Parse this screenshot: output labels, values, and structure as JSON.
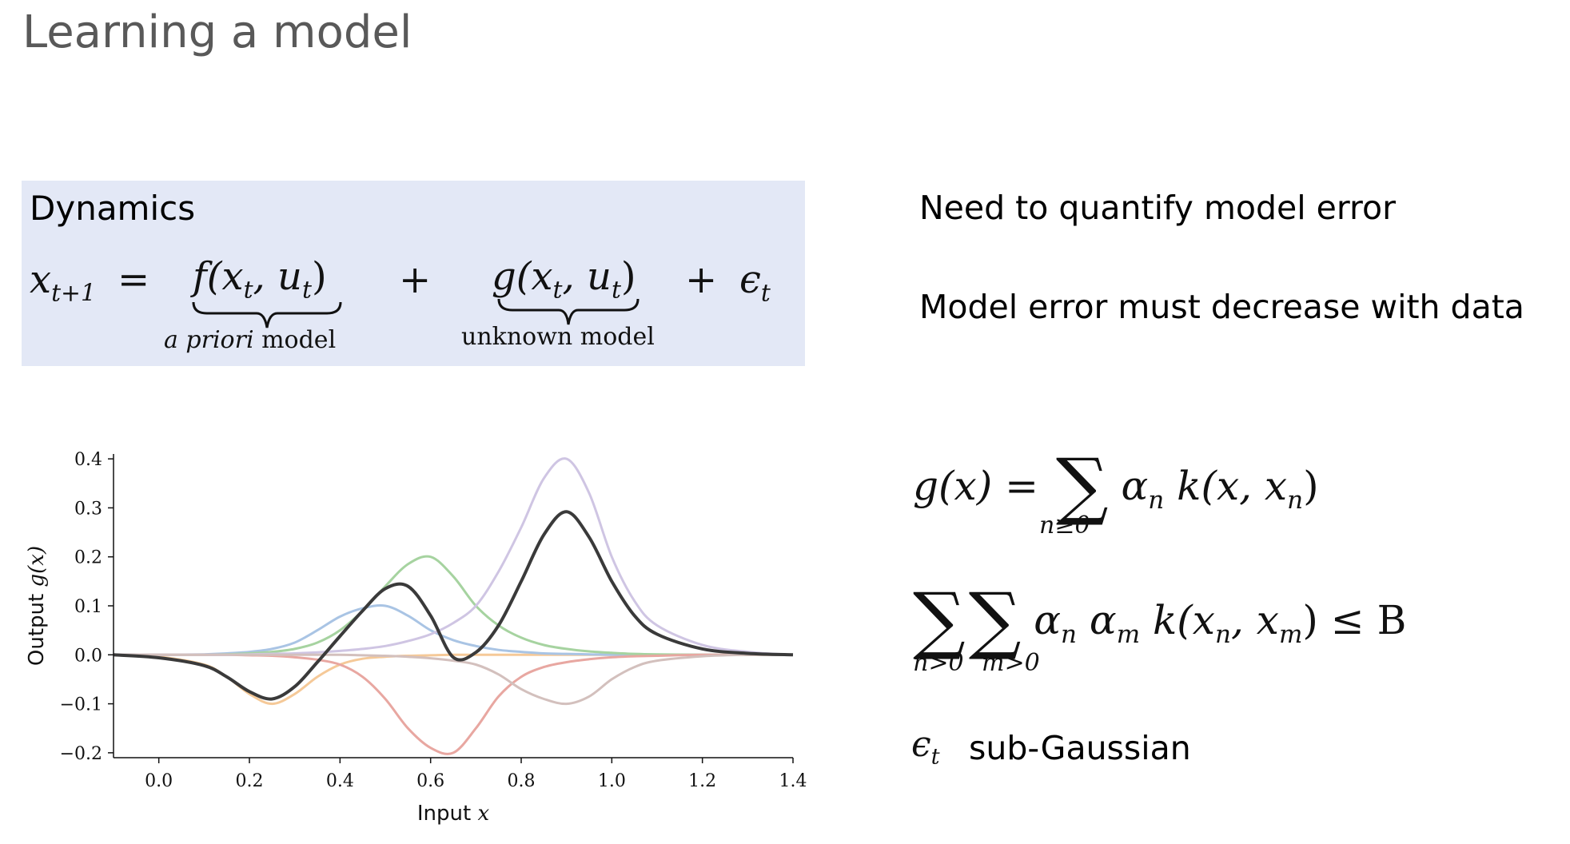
{
  "slide": {
    "title": "Learning a model"
  },
  "dynamics": {
    "heading": "Dynamics",
    "lhs": "x",
    "lhs_sub": "t+1",
    "eq": "=",
    "f_term": "f(x",
    "f_sub1": "t",
    "f_mid": ", u",
    "f_sub2": "t",
    "f_end": ")",
    "plus1": "+",
    "g_term": "g(x",
    "g_sub1": "t",
    "g_mid": ", u",
    "g_sub2": "t",
    "g_end": ")",
    "plus2": "+",
    "eps": "ϵ",
    "eps_sub": "t",
    "f_label_italic": "a priori",
    "f_label_rest": " model",
    "g_label": "unknown model"
  },
  "bullets": {
    "line1": "Need to quantify model error",
    "line2": "Model error must decrease with data",
    "eps_symbol": "ϵ",
    "eps_sub": "t",
    "line3": "sub-Gaussian"
  },
  "formulas": {
    "kernel_lhs": "g(x) =",
    "sum_symbol": "∑",
    "kernel_rhs": "α",
    "kernel_rhs_sub": "n",
    "kernel_k": " k(x, x",
    "kernel_k_sub": "n",
    "kernel_close": ")",
    "kernel_under": "n≥0",
    "norm_terms": "α",
    "norm_sub1": "n",
    "norm_alpha2": " α",
    "norm_sub2": "m",
    "norm_k": " k(x",
    "norm_k_sub1": "n",
    "norm_comma": ", x",
    "norm_k_sub2": "m",
    "norm_close": ") ≤ B",
    "norm_under1": "n>0",
    "norm_under2": "m>0"
  },
  "chart_data": {
    "type": "line",
    "xlabel_text": "Input ",
    "xlabel_var": "x",
    "ylabel_text": "Output ",
    "ylabel_var": "g(x)",
    "xlim": [
      -0.1,
      1.4
    ],
    "ylim": [
      -0.21,
      0.41
    ],
    "xticks": [
      0.0,
      0.2,
      0.4,
      0.6,
      0.8,
      1.0,
      1.2,
      1.4
    ],
    "xtick_labels": [
      "0.0",
      "0.2",
      "0.4",
      "0.6",
      "0.8",
      "1.0",
      "1.2",
      "1.4"
    ],
    "yticks": [
      -0.2,
      -0.1,
      0.0,
      0.1,
      0.2,
      0.3,
      0.4
    ],
    "ytick_labels": [
      "−0.2",
      "−0.1",
      "0.0",
      "0.1",
      "0.2",
      "0.3",
      "0.4"
    ],
    "grid": false,
    "x": [
      -0.1,
      0.0,
      0.1,
      0.15,
      0.2,
      0.25,
      0.3,
      0.35,
      0.4,
      0.45,
      0.5,
      0.55,
      0.6,
      0.65,
      0.7,
      0.75,
      0.8,
      0.85,
      0.9,
      0.95,
      1.0,
      1.05,
      1.1,
      1.2,
      1.3,
      1.4
    ],
    "series": [
      {
        "color": "#f5c998",
        "values": [
          0.0,
          -0.004,
          -0.02,
          -0.045,
          -0.08,
          -0.1,
          -0.08,
          -0.045,
          -0.02,
          -0.008,
          -0.004,
          -0.002,
          -0.001,
          0.0,
          0.0,
          0.0,
          0.0,
          0.0,
          0.0,
          0.0,
          0.0,
          0.0,
          0.0,
          0.0,
          0.0,
          0.0
        ]
      },
      {
        "color": "#a9c4e4",
        "values": [
          0.0,
          0.0,
          0.001,
          0.003,
          0.006,
          0.012,
          0.025,
          0.05,
          0.078,
          0.095,
          0.1,
          0.08,
          0.05,
          0.03,
          0.018,
          0.01,
          0.006,
          0.003,
          0.002,
          0.001,
          0.0,
          0.0,
          0.0,
          0.0,
          0.0,
          0.0
        ]
      },
      {
        "color": "#a6d3a0",
        "values": [
          0.0,
          0.0,
          0.0,
          0.001,
          0.003,
          0.006,
          0.012,
          0.025,
          0.05,
          0.09,
          0.14,
          0.185,
          0.2,
          0.16,
          0.1,
          0.06,
          0.035,
          0.02,
          0.012,
          0.007,
          0.004,
          0.002,
          0.001,
          0.0,
          0.0,
          0.0
        ]
      },
      {
        "color": "#e8a7a1",
        "values": [
          0.0,
          0.0,
          0.0,
          0.0,
          -0.001,
          -0.002,
          -0.005,
          -0.01,
          -0.02,
          -0.045,
          -0.09,
          -0.15,
          -0.19,
          -0.2,
          -0.15,
          -0.085,
          -0.045,
          -0.025,
          -0.015,
          -0.009,
          -0.005,
          -0.003,
          -0.002,
          0.0,
          0.0,
          0.0
        ]
      },
      {
        "color": "#cfc5e3",
        "values": [
          0.0,
          0.0,
          0.0,
          0.0,
          0.001,
          0.002,
          0.003,
          0.005,
          0.008,
          0.012,
          0.018,
          0.028,
          0.042,
          0.065,
          0.1,
          0.17,
          0.26,
          0.36,
          0.4,
          0.33,
          0.2,
          0.11,
          0.06,
          0.02,
          0.006,
          0.0
        ]
      },
      {
        "color": "#d3c0bd",
        "values": [
          0.0,
          0.0,
          0.0,
          0.0,
          0.0,
          0.0,
          0.0,
          0.0,
          0.0,
          -0.001,
          -0.002,
          -0.004,
          -0.007,
          -0.012,
          -0.02,
          -0.04,
          -0.07,
          -0.09,
          -0.1,
          -0.085,
          -0.05,
          -0.025,
          -0.012,
          -0.003,
          0.0,
          0.0
        ]
      },
      {
        "color": "#3a3a3a",
        "values": [
          0.0,
          -0.006,
          -0.022,
          -0.045,
          -0.075,
          -0.09,
          -0.065,
          -0.015,
          0.038,
          0.09,
          0.135,
          0.14,
          0.08,
          -0.005,
          0.005,
          0.06,
          0.15,
          0.245,
          0.292,
          0.24,
          0.15,
          0.08,
          0.042,
          0.012,
          0.003,
          0.0
        ]
      }
    ]
  }
}
